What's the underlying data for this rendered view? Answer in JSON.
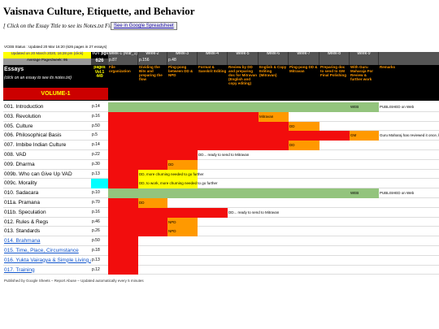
{
  "header": {
    "title": "Vaisnava Culture, Etiquette, and Behavior",
    "subtitle": "[ Click on the Essay Title to see its Notes.txt File ]",
    "button": "See in Google Spreadsheet"
  },
  "sheet": {
    "status": "VCEB Status : Updated 20 Mar 16:20 (626 pages in 27 essays)",
    "updated": "Updated on 20 March 2020, 16:28 pm (click)",
    "average": "Average Pages/week: 95",
    "total_label": "TOT pgs",
    "total": "626",
    "weeks": [
      "week-1 (Mar_1)",
      "week-2",
      "week-3",
      "week-4",
      "week-5",
      "week-6",
      "week-7",
      "week-8",
      "week-9"
    ],
    "week_pages": [
      "p.87",
      "p.156",
      "p.48",
      null,
      null,
      null,
      null,
      null,
      null
    ],
    "essays_label": "Essays",
    "essays_hint": "(click on an essay to see its notes.txt)",
    "pages_label": "pages Vol.1 449",
    "stages": [
      "File organization",
      "Dividing the Bits and preparing the flow",
      "Ping-pong between DD & NPD",
      "Format & Sanskrit Editing",
      "Review by DD and preparing doc for Mitravan (English and copy editing)",
      "English & Copy Editing (Mitravan)",
      "Ping-pong DD & Mitravan",
      "Preparing doc to send to GM Final Polishing",
      "With Guru Maharaja For Review & further work",
      "Remarks"
    ],
    "volume": "VOLUME-1",
    "colors": {
      "R": "#f20d0d",
      "O": "#ff9900",
      "G": "#93c47d",
      "Y": "#ffff00",
      "C": "#00ffff"
    },
    "rows": [
      {
        "title": "001. Introduction",
        "pages": "p.14",
        "cells": [
          {
            "fill": "G"
          },
          {
            "fill": "G"
          },
          {
            "fill": "G"
          },
          {
            "fill": "G"
          },
          {
            "fill": "G"
          },
          {
            "fill": "G"
          },
          {
            "fill": "G"
          },
          {
            "fill": "G"
          },
          {
            "fill": "G",
            "text": "WEB"
          },
          {
            "text": "PUBLISHED on Web"
          }
        ]
      },
      {
        "title": "003. Revolution",
        "pages": "p.16",
        "cells": [
          {
            "fill": "R"
          },
          {
            "fill": "R"
          },
          {
            "fill": "R"
          },
          {
            "fill": "R"
          },
          {
            "fill": "R"
          },
          {
            "fill": "O",
            "text": "Mitravan"
          },
          null,
          null,
          null,
          null
        ]
      },
      {
        "title": "005. Culture",
        "pages": "p.50",
        "cells": [
          {
            "fill": "R"
          },
          {
            "fill": "R"
          },
          {
            "fill": "R"
          },
          {
            "fill": "R"
          },
          {
            "fill": "R"
          },
          {
            "fill": "R"
          },
          {
            "fill": "O",
            "text": "DD"
          },
          null,
          null,
          null
        ]
      },
      {
        "title": "006. Philosophical Basis",
        "pages": "p.5",
        "cells": [
          {
            "fill": "R"
          },
          {
            "fill": "R"
          },
          {
            "fill": "R"
          },
          {
            "fill": "R"
          },
          {
            "fill": "R"
          },
          {
            "fill": "R"
          },
          {
            "fill": "R"
          },
          {
            "fill": "R"
          },
          {
            "fill": "O",
            "text": "GM"
          },
          {
            "text": "Guru Maharaj has reviewed it once, but s"
          }
        ]
      },
      {
        "title": "007. Imbibe Indian Culture",
        "pages": "p.14",
        "cells": [
          {
            "fill": "R"
          },
          {
            "fill": "R"
          },
          {
            "fill": "R"
          },
          {
            "fill": "R"
          },
          {
            "fill": "R"
          },
          {
            "fill": "R"
          },
          {
            "fill": "O",
            "text": "DD"
          },
          null,
          null,
          null
        ]
      },
      {
        "title": "008. VAD",
        "pages": "p.22",
        "cells": [
          {
            "fill": "R"
          },
          {
            "fill": "R"
          },
          {
            "fill": "R"
          },
          {
            "text": "DD... ready to send to Mitravan"
          },
          null,
          null,
          null,
          null,
          null,
          null
        ]
      },
      {
        "title": "009. Dharma",
        "pages": "p.30",
        "cells": [
          {
            "fill": "R"
          },
          {
            "fill": "R"
          },
          {
            "fill": "O",
            "text": "DD"
          },
          null,
          null,
          null,
          null,
          null,
          null,
          null
        ]
      },
      {
        "title": "009b. Who can Give Up VAD",
        "pages": "p.13",
        "cells": [
          {
            "fill": "R"
          },
          {
            "fill": "Y",
            "text": "DD, more churning needed to go further"
          },
          {
            "fill": "Y"
          },
          null,
          null,
          null,
          null,
          null,
          null,
          null
        ]
      },
      {
        "title": "009c. Morality",
        "pages": null,
        "pages_fill": "C",
        "cells": [
          {
            "fill": "R"
          },
          {
            "fill": "Y",
            "text": "DD, to work, more churning needed to go further"
          },
          {
            "fill": "Y"
          },
          null,
          null,
          null,
          null,
          null,
          null,
          null
        ]
      },
      {
        "title": "010. Sadacara",
        "pages": "p.10",
        "cells": [
          {
            "fill": "G"
          },
          {
            "fill": "G"
          },
          {
            "fill": "G"
          },
          {
            "fill": "G"
          },
          {
            "fill": "G"
          },
          {
            "fill": "G"
          },
          {
            "fill": "G"
          },
          {
            "fill": "G"
          },
          {
            "fill": "G",
            "text": "WEB"
          },
          {
            "text": "PUBLISHED on Web"
          }
        ]
      },
      {
        "title": "011a. Pramana",
        "pages": "p.70",
        "cells": [
          {
            "fill": "R"
          },
          {
            "fill": "O",
            "text": "DD"
          },
          null,
          null,
          null,
          null,
          null,
          null,
          null,
          null
        ]
      },
      {
        "title": "011b. Speculation",
        "pages": "p.16",
        "cells": [
          {
            "fill": "R"
          },
          {
            "fill": "R"
          },
          {
            "fill": "R"
          },
          {
            "fill": "R"
          },
          {
            "text": "DD... ready to send to Mitravan"
          },
          null,
          null,
          null,
          null,
          null
        ]
      },
      {
        "title": "012. Rules & Regs",
        "pages": "p.46",
        "cells": [
          {
            "fill": "R"
          },
          {
            "fill": "R"
          },
          {
            "fill": "O",
            "text": "NPD"
          },
          null,
          null,
          null,
          null,
          null,
          null,
          null
        ]
      },
      {
        "title": "013. Standards",
        "pages": "p.26",
        "cells": [
          {
            "fill": "R"
          },
          {
            "fill": "R"
          },
          {
            "fill": "O",
            "text": "NPD"
          },
          null,
          null,
          null,
          null,
          null,
          null,
          null
        ]
      },
      {
        "title": "014. Brahmana",
        "pages": "p.50",
        "link": true,
        "cells": [
          {
            "fill": "R"
          },
          null,
          null,
          null,
          null,
          null,
          null,
          null,
          null,
          null
        ]
      },
      {
        "title": "015. Time, Place, Circumstance",
        "pages": "p.18",
        "link": true,
        "cells": [
          {
            "fill": "R"
          },
          null,
          null,
          null,
          null,
          null,
          null,
          null,
          null,
          null
        ]
      },
      {
        "title": "016. Yukta Vairagya & Simple Living an",
        "pages": "p.13",
        "link": true,
        "cells": [
          {
            "fill": "R"
          },
          null,
          null,
          null,
          null,
          null,
          null,
          null,
          null,
          null
        ]
      },
      {
        "title": "017. Training",
        "pages": "p.12",
        "link": true,
        "cells": [
          {
            "fill": "R"
          },
          null,
          null,
          null,
          null,
          null,
          null,
          null,
          null,
          null
        ]
      }
    ],
    "footer": "Published by Google Sheets – Report Abuse – Updated automatically every 5 minutes"
  }
}
